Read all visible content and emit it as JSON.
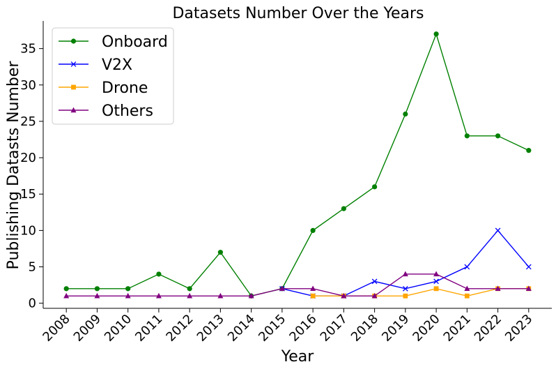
{
  "chart_data": {
    "type": "line",
    "title": "Datasets Number Over the Years",
    "xlabel": "Year",
    "ylabel": "Publishing Datasts Number",
    "x": [
      "2008",
      "2009",
      "2010",
      "2011",
      "2012",
      "2013",
      "2014",
      "2015",
      "2016",
      "2017",
      "2018",
      "2019",
      "2020",
      "2021",
      "2022",
      "2023"
    ],
    "ylim": [
      -0.7,
      38.8
    ],
    "yticks": [
      0,
      5,
      10,
      15,
      20,
      25,
      30,
      35
    ],
    "grid": false,
    "legend_position": "top-left",
    "series": [
      {
        "name": "Onboard",
        "color": "#008000",
        "marker": "circle",
        "values": [
          2,
          2,
          2,
          4,
          2,
          7,
          1,
          2,
          10,
          13,
          16,
          26,
          37,
          23,
          23,
          21
        ]
      },
      {
        "name": "V2X",
        "color": "#0000ff",
        "marker": "x",
        "values": [
          null,
          null,
          null,
          null,
          null,
          null,
          null,
          2,
          1,
          1,
          3,
          2,
          3,
          5,
          10,
          5
        ]
      },
      {
        "name": "Drone",
        "color": "#ffa500",
        "marker": "square",
        "values": [
          null,
          null,
          null,
          null,
          null,
          null,
          null,
          null,
          1,
          1,
          1,
          1,
          2,
          1,
          2,
          2
        ]
      },
      {
        "name": "Others",
        "color": "#800080",
        "marker": "triangle",
        "values": [
          1,
          1,
          1,
          1,
          1,
          1,
          1,
          2,
          2,
          1,
          1,
          4,
          4,
          2,
          2,
          2
        ]
      }
    ]
  }
}
